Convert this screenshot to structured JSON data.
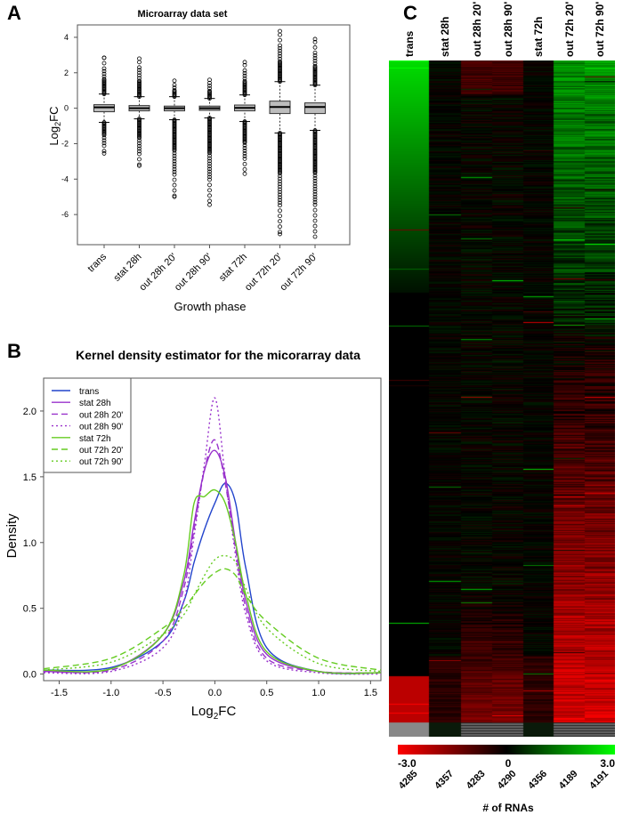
{
  "panels": {
    "a": "A",
    "b": "B",
    "c": "C"
  },
  "chart_data": [
    {
      "type": "box",
      "title": "Microarray data set",
      "xlabel": "Growth phase",
      "ylabel_main": "Log",
      "ylabel_sub": "2",
      "ylabel_end": "FC",
      "ylim": [
        -7.7,
        4.7
      ],
      "yticks": [
        4,
        2,
        0,
        -2,
        -4,
        -6
      ],
      "categories": [
        "trans",
        "stat 28h",
        "out 28h 20'",
        "out 28h 90'",
        "stat 72h",
        "out 72h 20'",
        "out 72h 90'"
      ],
      "boxes": [
        {
          "q1": -0.2,
          "median": 0.05,
          "q3": 0.2,
          "whisker_low": -0.8,
          "whisker_high": 0.8,
          "outlier_min": -2.55,
          "outlier_max": 2.85
        },
        {
          "q1": -0.15,
          "median": 0.0,
          "q3": 0.15,
          "whisker_low": -0.6,
          "whisker_high": 0.65,
          "outlier_min": -3.25,
          "outlier_max": 2.8
        },
        {
          "q1": -0.15,
          "median": 0.0,
          "q3": 0.12,
          "whisker_low": -0.65,
          "whisker_high": 0.65,
          "outlier_min": -5.0,
          "outlier_max": 1.55
        },
        {
          "q1": -0.12,
          "median": 0.0,
          "q3": 0.12,
          "whisker_low": -0.55,
          "whisker_high": 0.55,
          "outlier_min": -5.45,
          "outlier_max": 1.6
        },
        {
          "q1": -0.15,
          "median": 0.02,
          "q3": 0.18,
          "whisker_low": -0.75,
          "whisker_high": 0.75,
          "outlier_min": -3.7,
          "outlier_max": 2.6
        },
        {
          "q1": -0.3,
          "median": 0.07,
          "q3": 0.4,
          "whisker_low": -1.4,
          "whisker_high": 1.5,
          "outlier_min": -7.1,
          "outlier_max": 4.35
        },
        {
          "q1": -0.3,
          "median": 0.07,
          "q3": 0.3,
          "whisker_low": -1.25,
          "whisker_high": 1.3,
          "outlier_min": -7.25,
          "outlier_max": 3.9
        }
      ]
    },
    {
      "type": "line",
      "title": "Kernel density estimator for the micorarray data",
      "xlabel_main": "Log",
      "xlabel_sub": "2",
      "xlabel_end": "FC",
      "ylabel": "Density",
      "xlim": [
        -1.65,
        1.6
      ],
      "ylim": [
        -0.05,
        2.25
      ],
      "xticks": [
        -1.5,
        -1.0,
        -0.5,
        0.0,
        0.5,
        1.0,
        1.5
      ],
      "xticklabels": [
        "-1.5",
        "-1.0",
        "-0.5",
        "0.0",
        "0.5",
        "1.0",
        "1.5"
      ],
      "yticks": [
        0,
        0.5,
        1,
        1.5,
        2
      ],
      "yticklabels": [
        "0.0",
        "0.5",
        "1.0",
        "1.5",
        "2.0"
      ],
      "legend": "top-left",
      "x": [
        -1.65,
        -1.0,
        -0.5,
        -0.3,
        -0.2,
        -0.1,
        0,
        0.1,
        0.2,
        0.3,
        0.5,
        1.0,
        1.6
      ],
      "series": [
        {
          "name": "trans",
          "color": "#2244cc",
          "dash": "",
          "values": [
            0.03,
            0.05,
            0.25,
            0.55,
            0.85,
            1.1,
            1.3,
            1.45,
            1.3,
            0.8,
            0.2,
            0.02,
            0.01
          ]
        },
        {
          "name": "stat 28h",
          "color": "#9933cc",
          "dash": "",
          "values": [
            0.02,
            0.04,
            0.3,
            0.7,
            1.15,
            1.55,
            1.7,
            1.5,
            1.0,
            0.55,
            0.15,
            0.02,
            0.01
          ]
        },
        {
          "name": "out 28h 20'",
          "color": "#9933cc",
          "dash": "7,4",
          "values": [
            0.02,
            0.03,
            0.25,
            0.65,
            1.1,
            1.55,
            1.78,
            1.45,
            0.95,
            0.5,
            0.12,
            0.02,
            0.01
          ]
        },
        {
          "name": "out 28h 90'",
          "color": "#9933cc",
          "dash": "2,3",
          "values": [
            0.01,
            0.02,
            0.2,
            0.55,
            1.05,
            1.6,
            2.1,
            1.5,
            0.9,
            0.45,
            0.1,
            0.01,
            0.0
          ]
        },
        {
          "name": "stat 72h",
          "color": "#66cc22",
          "dash": "",
          "values": [
            0.03,
            0.04,
            0.3,
            0.75,
            1.3,
            1.35,
            1.4,
            1.3,
            1.0,
            0.6,
            0.17,
            0.02,
            0.01
          ]
        },
        {
          "name": "out 72h 20'",
          "color": "#66cc22",
          "dash": "7,4",
          "values": [
            0.04,
            0.12,
            0.35,
            0.5,
            0.6,
            0.7,
            0.77,
            0.8,
            0.75,
            0.6,
            0.4,
            0.12,
            0.03
          ]
        },
        {
          "name": "out 72h 90'",
          "color": "#66cc22",
          "dash": "2,3",
          "values": [
            0.03,
            0.09,
            0.3,
            0.45,
            0.6,
            0.75,
            0.87,
            0.9,
            0.85,
            0.65,
            0.35,
            0.08,
            0.02
          ]
        }
      ]
    },
    {
      "type": "heatmap",
      "columns": [
        "trans",
        "stat 28h",
        "out 28h 20'",
        "out 28h 90'",
        "stat 72h",
        "out 72h 20'",
        "out 72h 90'"
      ],
      "counts": [
        "4285",
        "4357",
        "4283",
        "4290",
        "4356",
        "4189",
        "4191"
      ],
      "count_label": "# of RNAs",
      "scale": {
        "min": "-3.0",
        "mid": "0",
        "max": "3.0",
        "low_color": "#ff0000",
        "mid_color": "#000000",
        "high_color": "#00ff00"
      }
    }
  ]
}
